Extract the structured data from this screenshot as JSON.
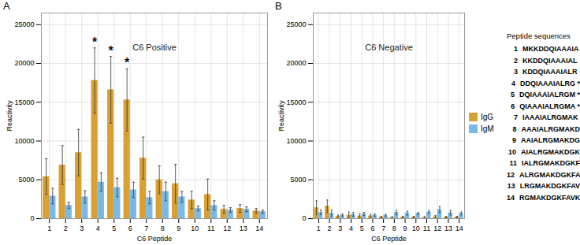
{
  "chart_data": [
    {
      "type": "bar",
      "panel_label": "A",
      "title": "C6 Positive",
      "x_label": "C6 Peptide",
      "y_label": "Reactivity",
      "categories": [
        "1",
        "2",
        "3",
        "4",
        "5",
        "6",
        "7",
        "8",
        "9",
        "10",
        "11",
        "12",
        "13",
        "14"
      ],
      "series": [
        {
          "name": "IgG",
          "color": "#d9a032",
          "values": [
            5400,
            6900,
            8500,
            17800,
            16600,
            15300,
            7800,
            5000,
            4500,
            2400,
            3100,
            1200,
            1300,
            1000
          ],
          "errors": [
            2300,
            2500,
            3000,
            4200,
            4300,
            4000,
            2700,
            1800,
            2500,
            1100,
            2000,
            500,
            500,
            300
          ]
        },
        {
          "name": "IgM",
          "color": "#7ab8e8",
          "values": [
            2900,
            1700,
            2800,
            4700,
            4000,
            3700,
            2700,
            3500,
            2800,
            1300,
            1700,
            1100,
            1200,
            900
          ],
          "errors": [
            1000,
            400,
            800,
            1200,
            1200,
            1000,
            800,
            1200,
            700,
            300,
            600,
            300,
            300,
            200
          ]
        }
      ],
      "annotations": [
        {
          "category": "4",
          "text": "*"
        },
        {
          "category": "5",
          "text": "*"
        },
        {
          "category": "6",
          "text": "*"
        }
      ],
      "ylim": [
        0,
        26500
      ],
      "yticks": [
        0,
        5000,
        10000,
        15000,
        20000,
        25000
      ],
      "grid": true
    },
    {
      "type": "bar",
      "panel_label": "B",
      "title": "C6 Negative",
      "x_label": "C6 Peptide",
      "y_label": "Reactivity",
      "categories": [
        "1",
        "2",
        "3",
        "4",
        "5",
        "6",
        "7",
        "8",
        "9",
        "10",
        "11",
        "12",
        "13",
        "14"
      ],
      "series": [
        {
          "name": "IgG",
          "color": "#d9a032",
          "values": [
            1400,
            1600,
            300,
            450,
            350,
            350,
            200,
            150,
            200,
            200,
            150,
            250,
            200,
            200
          ],
          "errors": [
            900,
            800,
            150,
            400,
            250,
            200,
            100,
            100,
            100,
            100,
            100,
            150,
            100,
            100
          ]
        },
        {
          "name": "IgM",
          "color": "#7ab8e8",
          "values": [
            800,
            700,
            450,
            550,
            600,
            450,
            400,
            800,
            700,
            650,
            850,
            1150,
            750,
            650
          ],
          "errors": [
            300,
            400,
            150,
            250,
            200,
            150,
            150,
            300,
            250,
            150,
            200,
            400,
            300,
            200
          ]
        }
      ],
      "ylim": [
        0,
        26500
      ],
      "yticks": [
        0,
        5000,
        10000,
        15000,
        20000,
        25000
      ],
      "grid": true,
      "legend": "right"
    }
  ],
  "peptide_table": {
    "title": "Peptide sequences",
    "rows": [
      [
        "1",
        "MKKDDQIAAAIA"
      ],
      [
        "2",
        "KKDDQIAAAIAL"
      ],
      [
        "3",
        "KDDQIAAAIALR"
      ],
      [
        "4",
        "DDQIAAAIALRG *"
      ],
      [
        "5",
        "DQIAAAIALRGM *"
      ],
      [
        "6",
        "QIAAAIALRGMA *"
      ],
      [
        "7",
        "IAAAIALRGMAK"
      ],
      [
        "8",
        "AAAIALRGMAKD"
      ],
      [
        "9",
        "AAIALRGMAKDG"
      ],
      [
        "10",
        "AIALRGMAKDGK"
      ],
      [
        "11",
        "IALRGMAKDGKF"
      ],
      [
        "12",
        "ALRGMAKDGKFA"
      ],
      [
        "13",
        "LRGMAKDGKFAV"
      ],
      [
        "14",
        "RGMAKDGKFAVK"
      ]
    ]
  }
}
